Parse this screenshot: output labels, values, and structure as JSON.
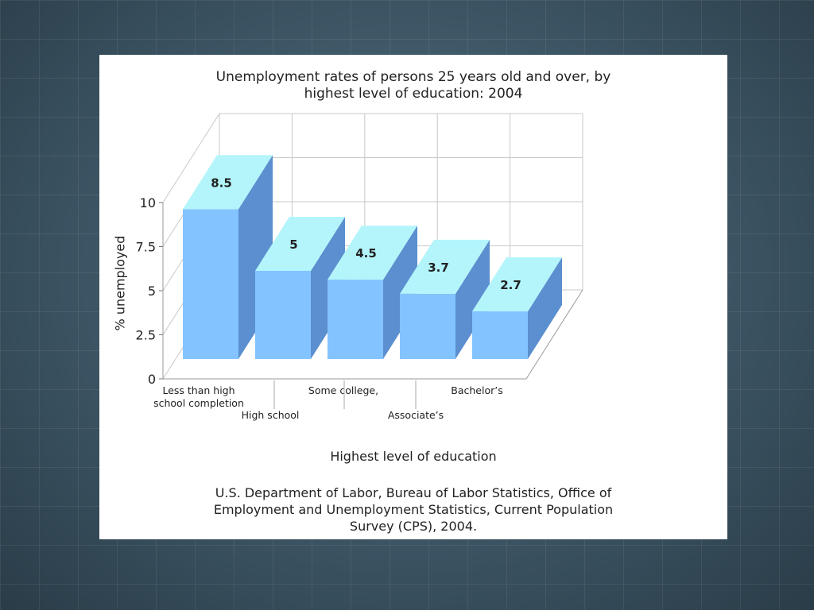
{
  "chart_data": {
    "type": "bar",
    "title_lines": [
      "Unemployment rates of persons 25 years old and over, by",
      "highest level of education: 2004"
    ],
    "xlabel": "Highest level of education",
    "ylabel": "% unemployed",
    "categories": [
      [
        "Less than high",
        "school completion"
      ],
      [
        "High school"
      ],
      [
        "Some college,"
      ],
      [
        "Associate’s"
      ],
      [
        "Bachelor’s"
      ]
    ],
    "values": [
      8.5,
      5,
      4.5,
      3.7,
      2.7
    ],
    "value_labels": [
      "8.5",
      "5",
      "4.5",
      "3.7",
      "2.7"
    ],
    "ylim": [
      0,
      10
    ],
    "yticks": [
      0,
      2.5,
      5,
      7.5,
      10
    ],
    "ytick_labels": [
      "0",
      "2.5",
      "5",
      "7.5",
      "10"
    ],
    "grid": true,
    "style": "3d",
    "colors": {
      "bar_front": "#83c3ff",
      "bar_top": "#b3f5fb",
      "bar_side": "#5b8fcf",
      "grid": "#c8c8c8"
    },
    "source_lines": [
      "U.S. Department of Labor, Bureau of Labor Statistics, Office of",
      "Employment and Unemployment Statistics, Current Population",
      "Survey (CPS), 2004."
    ]
  }
}
